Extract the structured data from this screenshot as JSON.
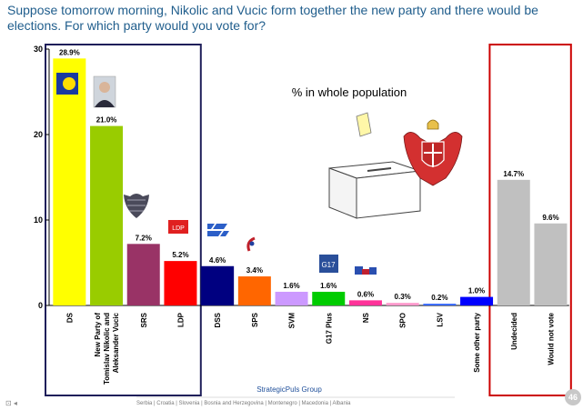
{
  "slide": {
    "title": "Suppose tomorrow morning, Nikolic and Vucic form together the new party and there would be elections. For which party would you vote  for?",
    "source": "StrategicPuls Group",
    "footer": "Serbia   |   Croatia   |   Slovenia   |   Bosnia and Herzegovina   |   Montenegro   |   Macedonia   |   Albania",
    "page_number": "46",
    "corner_icons": "⊡ ◂"
  },
  "chart_data": {
    "type": "bar",
    "annotation": "% in whole population",
    "categories": [
      "DS",
      "New Party of Tomislav Nikolic and Aleksander Vucic",
      "SRS",
      "LDP",
      "DSS",
      "SPS",
      "SVM",
      "G17 Plus",
      "NS",
      "SPO",
      "LSV",
      "Some other party",
      "Undecided",
      "Would not vote"
    ],
    "category_lines": [
      [
        "DS"
      ],
      [
        "New Party of",
        "Tomislav Nikolic and",
        "Aleksander Vucic"
      ],
      [
        "SRS"
      ],
      [
        "LDP"
      ],
      [
        "DSS"
      ],
      [
        "SPS"
      ],
      [
        "SVM"
      ],
      [
        "G17 Plus"
      ],
      [
        "NS"
      ],
      [
        "SPO"
      ],
      [
        "LSV"
      ],
      [
        "Some other party"
      ],
      [
        "Undecided"
      ],
      [
        "Would not vote"
      ]
    ],
    "values": [
      28.9,
      21.0,
      7.2,
      5.2,
      4.6,
      3.4,
      1.6,
      1.6,
      0.6,
      0.3,
      0.2,
      1.0,
      14.7,
      9.6
    ],
    "value_labels": [
      "28.9%",
      "21.0%",
      "7.2%",
      "5.2%",
      "4.6%",
      "3.4%",
      "1.6%",
      "1.6%",
      "0.6%",
      "0.3%",
      "0.2%",
      "1.0%",
      "14.7%",
      "9.6%"
    ],
    "colors": [
      "#ffff00",
      "#99cc00",
      "#993366",
      "#ff0000",
      "#000080",
      "#ff6600",
      "#cc99ff",
      "#00cc00",
      "#ff3399",
      "#ff99cc",
      "#3366ff",
      "#0000ff",
      "#c0c0c0",
      "#c0c0c0"
    ],
    "yticks": [
      0,
      10,
      20,
      30
    ],
    "ylim": [
      0,
      30
    ],
    "highlight_boxes": [
      {
        "from": 0,
        "to": 3,
        "color": "#1f1f5a"
      },
      {
        "from": 12,
        "to": 13,
        "color": "#cc0000"
      }
    ],
    "party_logos": {
      "DS": "ds-logo",
      "New Party of Tomislav Nikolic and Aleksander Vucic": "nikolic-portrait",
      "SRS": "srs-eagle-logo",
      "LDP": "ldp-logo",
      "DSS": "dss-logo",
      "SPS": "sps-logo",
      "G17 Plus": "g17-logo",
      "NS": "ns-logo"
    },
    "ldp_logo_text": "LDP",
    "g17_logo_text": "G17"
  }
}
